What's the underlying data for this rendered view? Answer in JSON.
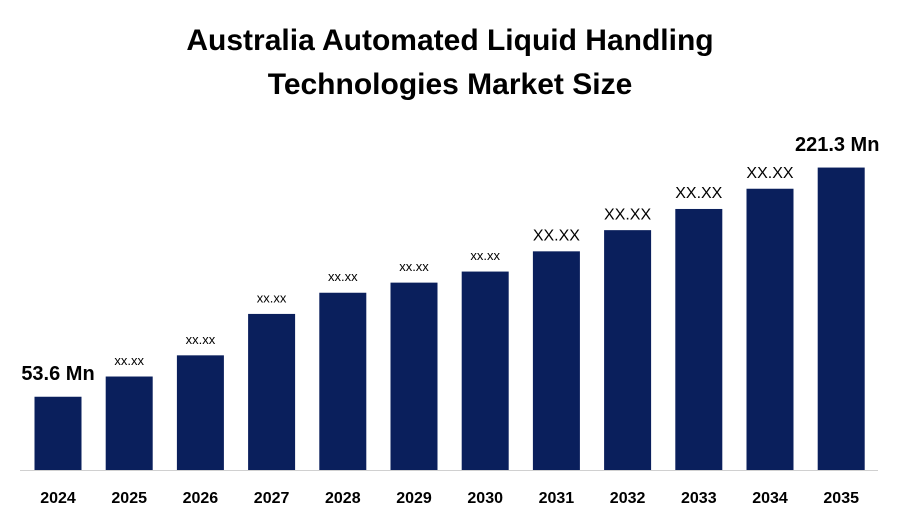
{
  "chart_data": {
    "type": "bar",
    "title": [
      "Australia Automated Liquid Handling",
      "Technologies Market Size"
    ],
    "categories": [
      "2024",
      "2025",
      "2026",
      "2027",
      "2028",
      "2029",
      "2030",
      "2031",
      "2032",
      "2033",
      "2034",
      "2035"
    ],
    "values": [
      53.6,
      68.4,
      83.9,
      114.2,
      129.7,
      137.1,
      145.2,
      160.0,
      175.5,
      191.0,
      205.8,
      221.3
    ],
    "value_labels": [
      "53.6 Mn",
      "xx.xx",
      "xx.xx",
      "xx.xx",
      "xx.xx",
      "xx.xx",
      "xx.xx",
      "XX.XX",
      "XX.XX",
      "XX.XX",
      "XX.XX",
      "221.3 Mn"
    ],
    "color": "#0a1f5c",
    "ylim": [
      0,
      240
    ]
  }
}
